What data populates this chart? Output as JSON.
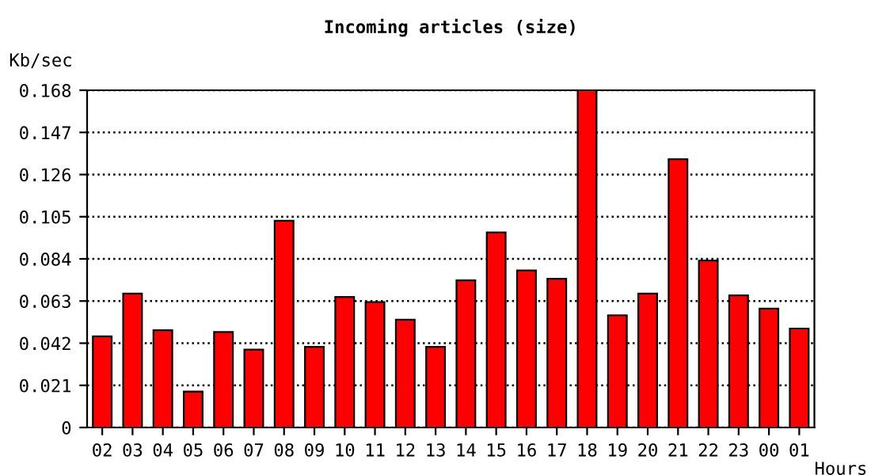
{
  "chart_data": {
    "type": "bar",
    "title": "Incoming articles (size)",
    "xlabel": "Hours",
    "ylabel": "Kb/sec",
    "categories": [
      "02",
      "03",
      "04",
      "05",
      "06",
      "07",
      "08",
      "09",
      "10",
      "11",
      "12",
      "13",
      "14",
      "15",
      "16",
      "17",
      "18",
      "19",
      "20",
      "21",
      "22",
      "23",
      "00",
      "01"
    ],
    "values": [
      0.0454,
      0.0667,
      0.0485,
      0.0179,
      0.0476,
      0.0388,
      0.103,
      0.0402,
      0.065,
      0.0625,
      0.0537,
      0.0402,
      0.0733,
      0.0972,
      0.0782,
      0.0741,
      0.168,
      0.0559,
      0.0667,
      0.1336,
      0.0832,
      0.0658,
      0.0592,
      0.0493
    ],
    "color": "#ff0000",
    "ylim": [
      0,
      0.168
    ],
    "yticks": [
      0,
      0.021,
      0.042,
      0.063,
      0.084,
      0.105,
      0.126,
      0.147,
      0.168
    ],
    "grid": "y",
    "line_style": "dotted"
  }
}
